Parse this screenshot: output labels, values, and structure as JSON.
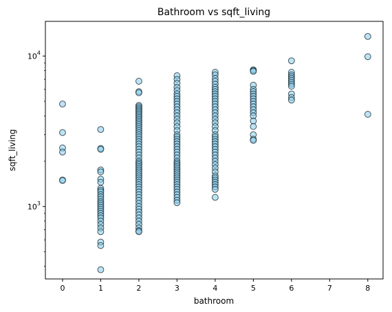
{
  "chart_data": {
    "type": "scatter",
    "title": "Bathroom vs sqft_living",
    "xlabel": "bathroom",
    "ylabel": "sqft_living",
    "yscale": "log",
    "xlim": [
      -0.45,
      8.4
    ],
    "ylim": [
      330,
      17000
    ],
    "xticks": [
      0,
      1,
      2,
      3,
      4,
      5,
      6,
      7,
      8
    ],
    "yticks": [
      {
        "value": 1000,
        "base": "10",
        "exp": "3"
      },
      {
        "value": 10000,
        "base": "10",
        "exp": "4"
      }
    ],
    "grid": false,
    "marker_face": "#87CEEB",
    "marker_edge": "#1a2a33",
    "marker_alpha": 0.55,
    "points": {
      "0": [
        4800,
        3100,
        2450,
        2300,
        1500,
        1490
      ],
      "1": [
        3250,
        2430,
        2400,
        1750,
        1700,
        1520,
        1450,
        1320,
        1280,
        1250,
        1200,
        1160,
        1120,
        1080,
        1050,
        1020,
        990,
        960,
        930,
        900,
        870,
        840,
        800,
        760,
        720,
        680,
        580,
        550,
        380
      ],
      "2": [
        6800,
        5800,
        5700,
        4700,
        4600,
        4500,
        4400,
        4300,
        4200,
        4100,
        4000,
        3900,
        3800,
        3700,
        3600,
        3500,
        3400,
        3300,
        3200,
        3100,
        3000,
        2900,
        2800,
        2700,
        2600,
        2500,
        2400,
        2300,
        2200,
        2100,
        2000,
        1950,
        1900,
        1850,
        1800,
        1750,
        1700,
        1650,
        1600,
        1550,
        1500,
        1450,
        1400,
        1350,
        1300,
        1250,
        1200,
        1150,
        1100,
        1050,
        1000,
        960,
        920,
        880,
        840,
        800,
        760,
        720,
        690,
        680
      ],
      "3": [
        7400,
        7000,
        6600,
        6200,
        5900,
        5600,
        5400,
        5200,
        5000,
        4800,
        4600,
        4400,
        4200,
        4000,
        3800,
        3600,
        3400,
        3200,
        3000,
        2900,
        2800,
        2700,
        2600,
        2500,
        2400,
        2300,
        2200,
        2100,
        2000,
        1950,
        1900,
        1850,
        1800,
        1750,
        1700,
        1650,
        1600,
        1550,
        1500,
        1450,
        1400,
        1350,
        1300,
        1250,
        1200,
        1150,
        1100,
        1060
      ],
      "4": [
        7800,
        7500,
        7100,
        6800,
        6500,
        6200,
        6000,
        5800,
        5600,
        5400,
        5200,
        5000,
        4800,
        4600,
        4400,
        4200,
        4000,
        3800,
        3600,
        3400,
        3200,
        3000,
        2900,
        2800,
        2700,
        2600,
        2500,
        2400,
        2300,
        2200,
        2100,
        2000,
        1900,
        1800,
        1700,
        1600,
        1550,
        1500,
        1450,
        1400,
        1350,
        1300,
        1150
      ],
      "5": [
        8100,
        8000,
        7900,
        6400,
        6000,
        5800,
        5600,
        5400,
        5200,
        5000,
        4800,
        4600,
        4400,
        4200,
        4000,
        3700,
        3400,
        3000,
        2800,
        2750
      ],
      "6": [
        9300,
        7800,
        7500,
        7300,
        7100,
        6900,
        6700,
        6500,
        6300,
        5600,
        5300,
        5100
      ],
      "8": [
        13500,
        9900,
        4100
      ]
    }
  }
}
